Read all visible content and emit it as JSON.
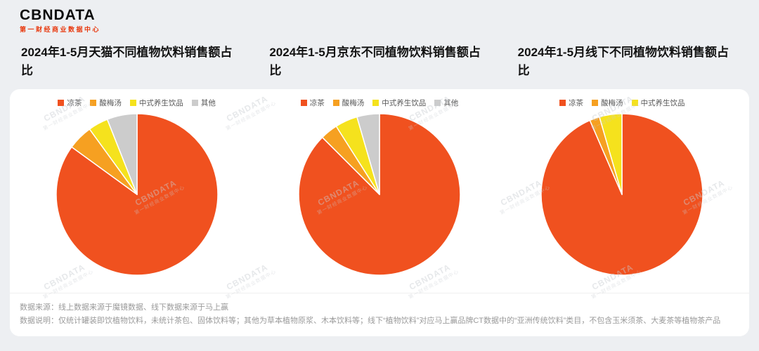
{
  "logo": {
    "text": "CBNDATA",
    "subtitle": "第一财经商业数据中心"
  },
  "watermark": {
    "line1": "CBNDATA",
    "line2": "第一财经商业数据中心"
  },
  "notes": {
    "source": "数据来源：线上数据来源于魔镜数据、线下数据来源于马上赢",
    "description": "数据说明：仅统计罐装即饮植物饮料，未统计茶包、固体饮料等；其他为草本植物原浆、木本饮料等；线下“植物饮料”对应马上赢品牌CT数据中的“亚洲传统饮料”类目，不包含玉米须茶、大麦茶等植物茶产品"
  },
  "chart_data": [
    {
      "type": "pie",
      "title": "2024年1-5月天猫不同植物饮料销售额占比",
      "labels": [
        "凉茶",
        "酸梅汤",
        "中式养生饮品",
        "其他"
      ],
      "values": [
        85,
        5,
        4,
        6
      ],
      "colors": [
        "#F0511F",
        "#F6A021",
        "#F5E21D",
        "#CCCCCC"
      ],
      "legend_position": "top",
      "unit": "%"
    },
    {
      "type": "pie",
      "title": "2024年1-5月京东不同植物饮料销售额占比",
      "labels": [
        "凉茶",
        "酸梅汤",
        "中式养生饮品",
        "其他"
      ],
      "values": [
        87.5,
        3.5,
        4.5,
        4.5
      ],
      "colors": [
        "#F0511F",
        "#F6A021",
        "#F5E21D",
        "#CCCCCC"
      ],
      "legend_position": "top",
      "unit": "%"
    },
    {
      "type": "pie",
      "title": "2024年1-5月线下不同植物饮料销售额占比",
      "labels": [
        "凉茶",
        "酸梅汤",
        "中式养生饮品"
      ],
      "values": [
        93.5,
        2,
        4.5
      ],
      "colors": [
        "#F0511F",
        "#F6A021",
        "#F5E21D"
      ],
      "legend_position": "top",
      "unit": "%"
    }
  ]
}
